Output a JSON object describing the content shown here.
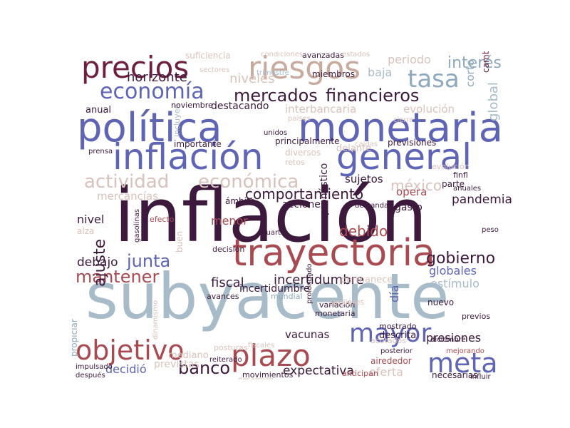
{
  "colors": {
    "dark_purple": "#3d1a3d",
    "maroon": "#6e1f3f",
    "red_brown": "#a84a50",
    "blue_purple": "#5e64b6",
    "steel_blue": "#8ea9bd",
    "light_blue": "#a7bcc8",
    "tan": "#c9ab9e",
    "light_tan": "#d8c2bb"
  },
  "words": [
    "inflación",
    "subyacente",
    "política",
    "monetaria",
    "inflación",
    "general",
    "trayectoria",
    "objetivo",
    "plazo",
    "precios",
    "riesgos",
    "economía",
    "mercados",
    "financieros",
    "tasa",
    "interés",
    "meta",
    "mayor",
    "actividad",
    "económica",
    "junta",
    "gobierno",
    "banco",
    "mantener",
    "comportamiento",
    "expectativa",
    "presiones",
    "fiscal",
    "incertidumbre",
    "horizonte",
    "destacando",
    "interbancaria",
    "evolución",
    "méxico",
    "pandemia",
    "sujetos",
    "mercancías",
    "nivel",
    "menor",
    "debido",
    "debajo",
    "decidió",
    "vacunas",
    "globales",
    "estímulo",
    "niveles",
    "anual",
    "global",
    "corto",
    "baja",
    "opera",
    "oferta",
    "día",
    "cambiaria",
    "periodo",
    "alza",
    "previstas",
    "mediano",
    "buen",
    "ámbito",
    "incertidumbre",
    "permanece",
    "descrita",
    "airededor",
    "necesarias",
    "movimientos",
    "ajuste",
    "cuarto",
    "gasto",
    "acciones",
    "pronóstico",
    "incluyen",
    "principalmente",
    "delante",
    "previsiones",
    "importante",
    "prensa",
    "retos",
    "diversos",
    "cierre",
    "evolución",
    "entorno",
    "monetaria",
    "anticipan",
    "previos",
    "nuevo",
    "variación",
    "reiterado",
    "prolongado",
    "dinamismo",
    "miembros",
    "trimestre",
    "noviembre",
    "suficiencia",
    "avanzadas",
    "estados",
    "condiciones",
    "sectores",
    "unidos",
    "países",
    "caídas",
    "demanda",
    "finfl",
    "parte",
    "peso",
    "anuales",
    "efecto",
    "gasolinas",
    "decisión",
    "avances",
    "mundial",
    "similares",
    "mostrado",
    "acotados",
    "distribución",
    "posturas",
    "fiscales",
    "desarrollo",
    "diciembre",
    "influir",
    "propiciar",
    "mejorando",
    "posterior",
    "impulsado",
    "después",
    "holgura"
  ]
}
